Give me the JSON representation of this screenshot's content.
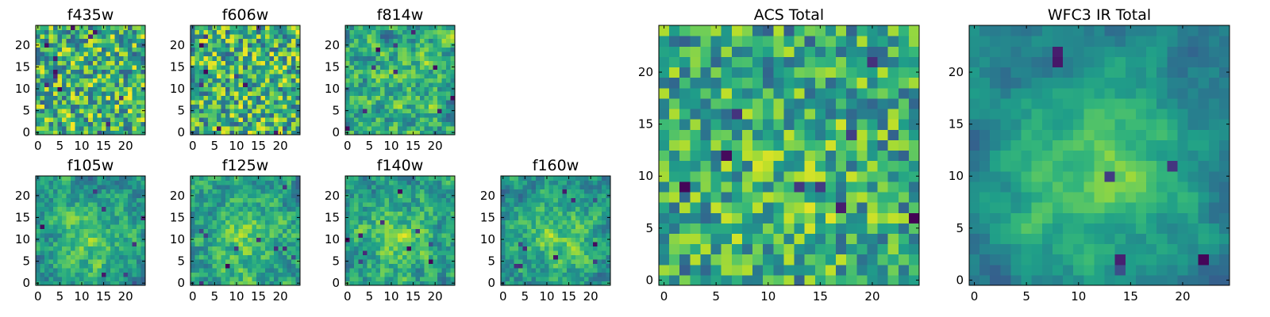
{
  "chart_data": [
    {
      "type": "heatmap",
      "title": "f435w",
      "seed": 11,
      "smooth": 0,
      "center_bias": 0.0,
      "dark_spots": 12,
      "xlim": [
        0,
        25
      ],
      "ylim": [
        0,
        25
      ],
      "xticks": [
        0,
        5,
        10,
        15,
        20
      ],
      "yticks": [
        0,
        5,
        10,
        15,
        20
      ],
      "colormap": "viridis",
      "xlabel": "",
      "ylabel": ""
    },
    {
      "type": "heatmap",
      "title": "f606w",
      "seed": 23,
      "smooth": 0,
      "center_bias": 0.0,
      "dark_spots": 10,
      "xlim": [
        0,
        25
      ],
      "ylim": [
        0,
        25
      ],
      "xticks": [
        0,
        5,
        10,
        15,
        20
      ],
      "yticks": [
        0,
        5,
        10,
        15,
        20
      ],
      "colormap": "viridis",
      "xlabel": "",
      "ylabel": ""
    },
    {
      "type": "heatmap",
      "title": "f814w",
      "seed": 37,
      "smooth": 1,
      "center_bias": 0.1,
      "dark_spots": 10,
      "xlim": [
        0,
        25
      ],
      "ylim": [
        0,
        25
      ],
      "xticks": [
        0,
        5,
        10,
        15,
        20
      ],
      "yticks": [
        0,
        5,
        10,
        15,
        20
      ],
      "colormap": "viridis",
      "xlabel": "",
      "ylabel": ""
    },
    {
      "type": "heatmap",
      "title": "f105w",
      "seed": 41,
      "smooth": 1,
      "center_bias": 0.35,
      "dark_spots": 8,
      "xlim": [
        0,
        25
      ],
      "ylim": [
        0,
        25
      ],
      "xticks": [
        0,
        5,
        10,
        15,
        20
      ],
      "yticks": [
        0,
        5,
        10,
        15,
        20
      ],
      "colormap": "viridis",
      "xlabel": "",
      "ylabel": ""
    },
    {
      "type": "heatmap",
      "title": "f125w",
      "seed": 53,
      "smooth": 1,
      "center_bias": 0.3,
      "dark_spots": 10,
      "xlim": [
        0,
        25
      ],
      "ylim": [
        0,
        25
      ],
      "xticks": [
        0,
        5,
        10,
        15,
        20
      ],
      "yticks": [
        0,
        5,
        10,
        15,
        20
      ],
      "colormap": "viridis",
      "xlabel": "",
      "ylabel": ""
    },
    {
      "type": "heatmap",
      "title": "f140w",
      "seed": 67,
      "smooth": 1,
      "center_bias": 0.3,
      "dark_spots": 10,
      "xlim": [
        0,
        25
      ],
      "ylim": [
        0,
        25
      ],
      "xticks": [
        0,
        5,
        10,
        15,
        20
      ],
      "yticks": [
        0,
        5,
        10,
        15,
        20
      ],
      "colormap": "viridis",
      "xlabel": "",
      "ylabel": ""
    },
    {
      "type": "heatmap",
      "title": "f160w",
      "seed": 79,
      "smooth": 1,
      "center_bias": 0.4,
      "dark_spots": 10,
      "xlim": [
        0,
        25
      ],
      "ylim": [
        0,
        25
      ],
      "xticks": [
        0,
        5,
        10,
        15,
        20
      ],
      "yticks": [
        0,
        5,
        10,
        15,
        20
      ],
      "colormap": "viridis",
      "xlabel": "",
      "ylabel": ""
    },
    {
      "type": "heatmap",
      "title": "ACS Total",
      "seed": 97,
      "smooth": 0,
      "center_bias": 0.15,
      "dark_spots": 9,
      "xlim": [
        0,
        25
      ],
      "ylim": [
        0,
        25
      ],
      "xticks": [
        0,
        5,
        10,
        15,
        20
      ],
      "yticks": [
        0,
        5,
        10,
        15,
        20
      ],
      "colormap": "viridis",
      "xlabel": "",
      "ylabel": ""
    },
    {
      "type": "heatmap",
      "title": "WFC3 IR Total",
      "seed": 131,
      "smooth": 2,
      "center_bias": 0.55,
      "dark_spots": 7,
      "xlim": [
        0,
        25
      ],
      "ylim": [
        0,
        25
      ],
      "xticks": [
        0,
        5,
        10,
        15,
        20
      ],
      "yticks": [
        0,
        5,
        10,
        15,
        20
      ],
      "colormap": "viridis",
      "xlabel": "",
      "ylabel": ""
    }
  ]
}
